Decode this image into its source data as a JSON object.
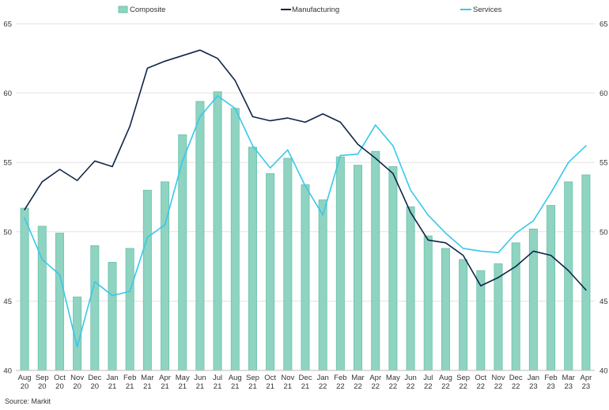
{
  "source": "Source: Markit",
  "colors": {
    "composite_fill": "#8fd3c1",
    "composite_stroke": "#6cc2ab",
    "manufacturing": "#0f2547",
    "services": "#38c8ea",
    "grid": "#e3e3e3"
  },
  "chart_data": {
    "type": "bar",
    "title": "",
    "xlabel": "",
    "ylabel": "",
    "ylim": [
      40,
      65
    ],
    "yticks": [
      40,
      45,
      50,
      55,
      60,
      65
    ],
    "grid": true,
    "legend_position": "top",
    "categories": [
      "Aug 20",
      "Sep 20",
      "Oct 20",
      "Nov 20",
      "Dec 20",
      "Jan 21",
      "Feb 21",
      "Mar 21",
      "Apr 21",
      "May 21",
      "Jun 21",
      "Jul 21",
      "Aug 21",
      "Sep 21",
      "Oct 21",
      "Nov 21",
      "Dec 21",
      "Jan 22",
      "Feb 22",
      "Mar 22",
      "Apr 22",
      "May 22",
      "Jun 22",
      "Jul 22",
      "Aug 22",
      "Sep 22",
      "Oct 22",
      "Nov 22",
      "Dec 22",
      "Jan 23",
      "Feb 23",
      "Mar 23",
      "Apr 23"
    ],
    "series": [
      {
        "name": "Composite",
        "type": "bar",
        "values": [
          51.7,
          50.4,
          49.9,
          45.3,
          49.0,
          47.8,
          48.8,
          53.0,
          53.6,
          57.0,
          59.4,
          60.1,
          58.9,
          56.1,
          54.2,
          55.3,
          53.4,
          52.3,
          55.4,
          54.8,
          55.8,
          54.7,
          51.8,
          49.7,
          48.8,
          48.0,
          47.2,
          47.7,
          49.2,
          50.2,
          51.9,
          53.6,
          54.1
        ]
      },
      {
        "name": "Manufacturing",
        "type": "line",
        "values": [
          51.6,
          53.6,
          54.5,
          53.7,
          55.1,
          54.7,
          57.6,
          61.8,
          62.3,
          62.7,
          63.1,
          62.5,
          60.9,
          58.3,
          58.0,
          58.2,
          57.9,
          58.5,
          57.9,
          56.3,
          55.3,
          54.2,
          51.4,
          49.4,
          49.2,
          48.3,
          46.1,
          46.7,
          47.5,
          48.6,
          48.3,
          47.2,
          45.8
        ]
      },
      {
        "name": "Services",
        "type": "line",
        "values": [
          51.0,
          48.0,
          46.9,
          41.7,
          46.4,
          45.4,
          45.7,
          49.6,
          50.5,
          55.1,
          58.3,
          59.8,
          58.9,
          56.2,
          54.6,
          55.9,
          53.3,
          51.2,
          55.5,
          55.6,
          57.7,
          56.2,
          53.0,
          51.2,
          49.9,
          48.8,
          48.6,
          48.5,
          49.9,
          50.8,
          52.8,
          55.0,
          56.2
        ]
      }
    ]
  }
}
